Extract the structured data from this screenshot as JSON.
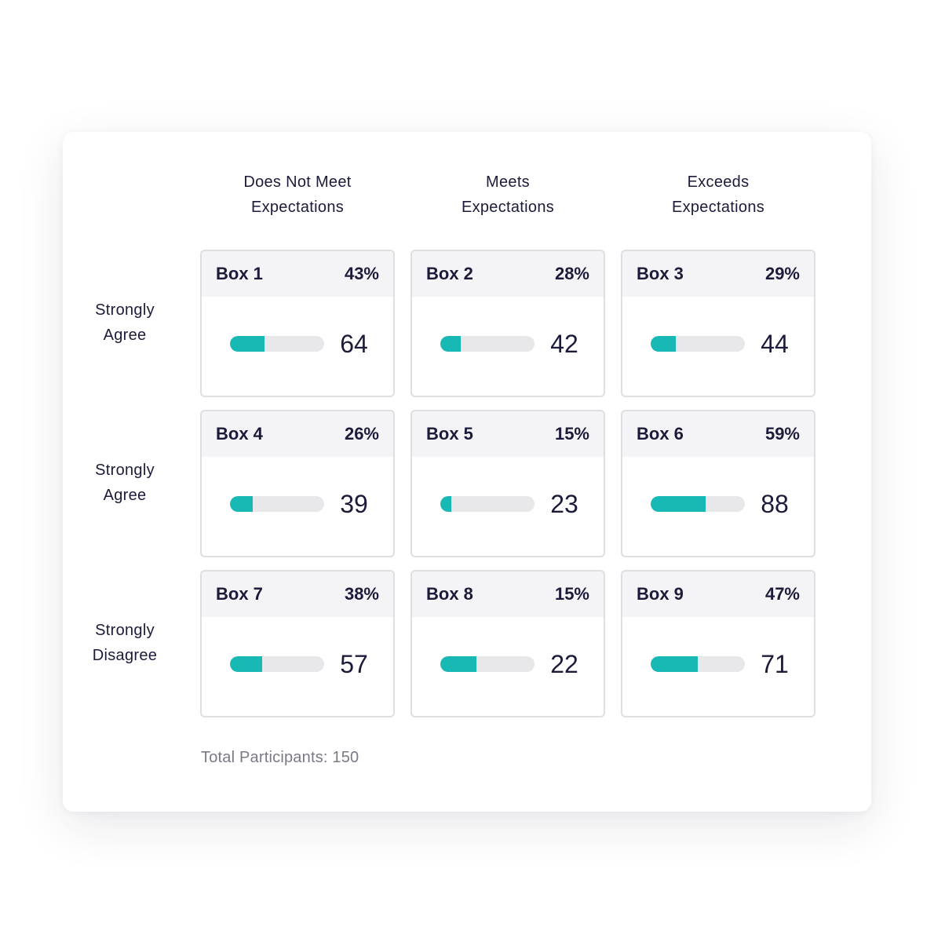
{
  "columns": [
    {
      "line1": "Does Not Meet",
      "line2": "Expectations"
    },
    {
      "line1": "Meets",
      "line2": "Expectations"
    },
    {
      "line1": "Exceeds",
      "line2": "Expectations"
    }
  ],
  "rows": [
    {
      "line1": "Strongly",
      "line2": "Agree"
    },
    {
      "line1": "Strongly",
      "line2": "Agree"
    },
    {
      "line1": "Strongly",
      "line2": "Disagree"
    }
  ],
  "boxes": [
    {
      "label": "Box 1",
      "percent": "43%",
      "count": "64",
      "fill_fraction": 0.37
    },
    {
      "label": "Box 2",
      "percent": "28%",
      "count": "42",
      "fill_fraction": 0.22
    },
    {
      "label": "Box 3",
      "percent": "29%",
      "count": "44",
      "fill_fraction": 0.27
    },
    {
      "label": "Box 4",
      "percent": "26%",
      "count": "39",
      "fill_fraction": 0.24
    },
    {
      "label": "Box 5",
      "percent": "15%",
      "count": "23",
      "fill_fraction": 0.12
    },
    {
      "label": "Box 6",
      "percent": "59%",
      "count": "88",
      "fill_fraction": 0.58
    },
    {
      "label": "Box 7",
      "percent": "38%",
      "count": "57",
      "fill_fraction": 0.34
    },
    {
      "label": "Box 8",
      "percent": "15%",
      "count": "22",
      "fill_fraction": 0.38
    },
    {
      "label": "Box 9",
      "percent": "47%",
      "count": "71",
      "fill_fraction": 0.5
    }
  ],
  "footer": {
    "total": "Total Participants: 150"
  },
  "colors": {
    "accent": "#18b8b4",
    "track": "#e8e8eb",
    "text": "#1c1b3a",
    "muted": "#7a7a86"
  }
}
